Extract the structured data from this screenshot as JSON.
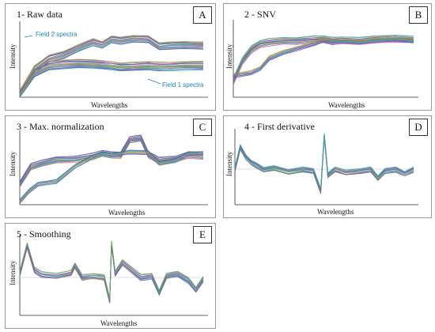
{
  "chart_data": [
    {
      "id": "A",
      "type": "line",
      "title": "1- Raw data",
      "panel_label": "A",
      "xlabel": "Wavelengths",
      "ylabel": "Intensity",
      "annotations": [
        "Field 2 spectra",
        "Field 1 spectra"
      ],
      "groups": [
        {
          "name": "Field 2 spectra",
          "x": [
            0,
            0.08,
            0.16,
            0.24,
            0.32,
            0.4,
            0.45,
            0.5,
            0.55,
            0.62,
            0.7,
            0.76,
            0.82,
            0.9,
            1
          ],
          "y": [
            0.05,
            0.4,
            0.55,
            0.6,
            0.7,
            0.78,
            0.74,
            0.82,
            0.8,
            0.83,
            0.82,
            0.72,
            0.73,
            0.74,
            0.73
          ],
          "count": 14
        },
        {
          "name": "Field 1 spectra",
          "x": [
            0,
            0.08,
            0.16,
            0.24,
            0.32,
            0.4,
            0.45,
            0.5,
            0.55,
            0.62,
            0.7,
            0.76,
            0.82,
            0.9,
            1
          ],
          "y": [
            0.05,
            0.35,
            0.45,
            0.47,
            0.48,
            0.47,
            0.46,
            0.45,
            0.43,
            0.44,
            0.45,
            0.44,
            0.44,
            0.45,
            0.45
          ],
          "count": 16
        }
      ]
    },
    {
      "id": "B",
      "type": "line",
      "title": "2 - SNV",
      "panel_label": "B",
      "xlabel": "Wavelengths",
      "ylabel": "Intensity",
      "groups": [
        {
          "name": "",
          "x": [
            0,
            0.05,
            0.1,
            0.15,
            0.2,
            0.28,
            0.35,
            0.45,
            0.5,
            0.55,
            0.6,
            0.7,
            0.8,
            0.9,
            1
          ],
          "y": [
            0.22,
            0.5,
            0.66,
            0.74,
            0.76,
            0.78,
            0.78,
            0.8,
            0.8,
            0.78,
            0.79,
            0.78,
            0.8,
            0.81,
            0.8
          ],
          "count": 12
        },
        {
          "name": "",
          "x": [
            0,
            0.05,
            0.1,
            0.15,
            0.2,
            0.28,
            0.35,
            0.45,
            0.5,
            0.55,
            0.6,
            0.7,
            0.8,
            0.9,
            1
          ],
          "y": [
            0.3,
            0.32,
            0.34,
            0.4,
            0.54,
            0.62,
            0.67,
            0.74,
            0.79,
            0.76,
            0.78,
            0.76,
            0.79,
            0.8,
            0.78
          ],
          "count": 8
        }
      ]
    },
    {
      "id": "C",
      "type": "line",
      "title": "3 - Max. normalization",
      "panel_label": "C",
      "xlabel": "Wavelengths",
      "ylabel": "Intensity",
      "groups": [
        {
          "name": "",
          "x": [
            0,
            0.06,
            0.12,
            0.2,
            0.3,
            0.4,
            0.45,
            0.5,
            0.55,
            0.6,
            0.66,
            0.7,
            0.76,
            0.85,
            0.92,
            1
          ],
          "y": [
            0.3,
            0.55,
            0.6,
            0.65,
            0.66,
            0.7,
            0.74,
            0.72,
            0.72,
            0.94,
            0.96,
            0.72,
            0.64,
            0.66,
            0.72,
            0.7
          ],
          "count": 12
        },
        {
          "name": "",
          "x": [
            0,
            0.05,
            0.1,
            0.15,
            0.2,
            0.3,
            0.4,
            0.45,
            0.5,
            0.55,
            0.6,
            0.7,
            0.76,
            0.85,
            0.92,
            1
          ],
          "y": [
            0.05,
            0.2,
            0.3,
            0.32,
            0.34,
            0.55,
            0.7,
            0.74,
            0.72,
            0.74,
            0.76,
            0.75,
            0.6,
            0.64,
            0.74,
            0.74
          ],
          "count": 8
        }
      ]
    },
    {
      "id": "D",
      "type": "line",
      "title": "4 - First derivative",
      "panel_label": "D",
      "xlabel": "Wavelengths",
      "ylabel": "Intensity",
      "groups": [
        {
          "name": "",
          "x": [
            0,
            0.03,
            0.06,
            0.09,
            0.12,
            0.16,
            0.22,
            0.3,
            0.38,
            0.44,
            0.48,
            0.5,
            0.52,
            0.56,
            0.62,
            0.7,
            0.76,
            0.8,
            0.84,
            0.9,
            0.95,
            1
          ],
          "y": [
            0.5,
            0.82,
            0.68,
            0.6,
            0.56,
            0.5,
            0.52,
            0.47,
            0.5,
            0.48,
            0.2,
            0.98,
            0.42,
            0.5,
            0.46,
            0.48,
            0.5,
            0.38,
            0.48,
            0.5,
            0.44,
            0.5
          ],
          "count": 10
        }
      ]
    },
    {
      "id": "E",
      "type": "line",
      "title": "5 - Smoothing",
      "panel_label": "E",
      "xlabel": "Wavelengths",
      "ylabel": "Intensity",
      "groups": [
        {
          "name": "",
          "x": [
            0,
            0.04,
            0.08,
            0.12,
            0.2,
            0.28,
            0.3,
            0.34,
            0.4,
            0.46,
            0.49,
            0.5,
            0.52,
            0.56,
            0.66,
            0.72,
            0.76,
            0.8,
            0.86,
            0.92,
            0.96,
            1
          ],
          "y": [
            0.55,
            0.92,
            0.6,
            0.54,
            0.52,
            0.56,
            0.66,
            0.5,
            0.52,
            0.5,
            0.2,
            0.95,
            0.55,
            0.7,
            0.5,
            0.52,
            0.3,
            0.52,
            0.55,
            0.46,
            0.34,
            0.48
          ],
          "count": 10
        }
      ]
    }
  ]
}
